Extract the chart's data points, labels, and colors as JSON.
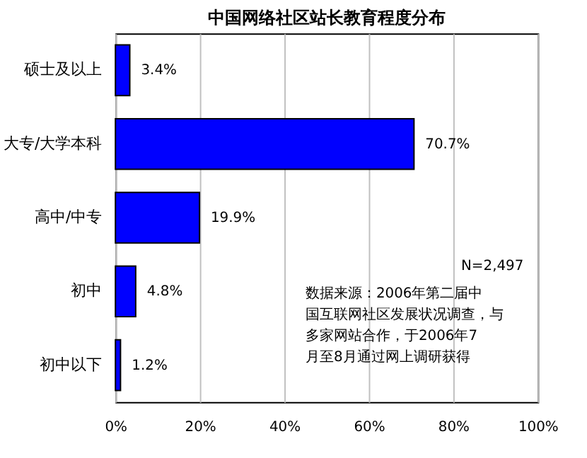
{
  "chart_data": {
    "type": "bar",
    "orientation": "horizontal",
    "title": "中国网络社区站长教育程度分布",
    "categories": [
      "硕士及以上",
      "大专/大学本科",
      "高中/中专",
      "初中",
      "初中以下"
    ],
    "values": [
      3.4,
      70.7,
      19.9,
      4.8,
      1.2
    ],
    "value_labels": [
      "3.4%",
      "70.7%",
      "19.9%",
      "4.8%",
      "1.2%"
    ],
    "color": "#0000ff",
    "xlim": [
      0,
      100
    ],
    "xticks": [
      {
        "value": 0,
        "label": "0%"
      },
      {
        "value": 20,
        "label": "20%"
      },
      {
        "value": 40,
        "label": "40%"
      },
      {
        "value": 60,
        "label": "60%"
      },
      {
        "value": 80,
        "label": "80%"
      },
      {
        "value": 100,
        "label": "100%"
      }
    ],
    "grid": "x",
    "annotations": [
      "N=2,497",
      "数据来源：2006年第二届中国互联网社区发展状况调查，与多家网站合作，于2006年7月至8月通过网上调研获得"
    ]
  }
}
